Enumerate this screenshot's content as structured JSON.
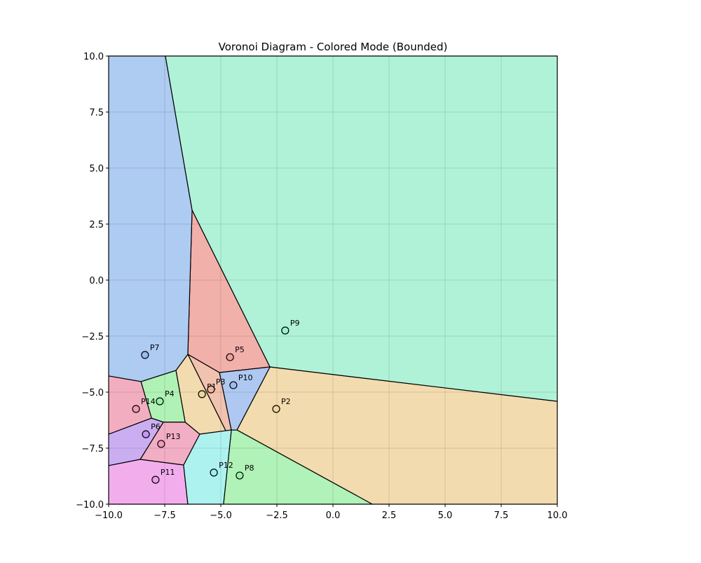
{
  "chart_data": {
    "type": "voronoi",
    "title": "Voronoi Diagram - Colored Mode (Bounded)",
    "xlim": [
      -10,
      10
    ],
    "ylim": [
      -10,
      10
    ],
    "xticks": [
      {
        "value": -10,
        "label": "−10.0"
      },
      {
        "value": -7.5,
        "label": "−7.5"
      },
      {
        "value": -5,
        "label": "−5.0"
      },
      {
        "value": -2.5,
        "label": "−2.5"
      },
      {
        "value": 0,
        "label": "0.0"
      },
      {
        "value": 2.5,
        "label": "2.5"
      },
      {
        "value": 5,
        "label": "5.0"
      },
      {
        "value": 7.5,
        "label": "7.5"
      },
      {
        "value": 10,
        "label": "10.0"
      }
    ],
    "yticks": [
      {
        "value": -10,
        "label": "−10.0"
      },
      {
        "value": -7.5,
        "label": "−7.5"
      },
      {
        "value": -5,
        "label": "−5.0"
      },
      {
        "value": -2.5,
        "label": "−2.5"
      },
      {
        "value": 0,
        "label": "0.0"
      },
      {
        "value": 2.5,
        "label": "2.5"
      },
      {
        "value": 5,
        "label": "5.0"
      },
      {
        "value": 7.5,
        "label": "7.5"
      },
      {
        "value": 10,
        "label": "10.0"
      }
    ],
    "grid": true,
    "points": {
      "labels": [
        "P1",
        "P2",
        "P3",
        "P4",
        "P5",
        "P6",
        "P7",
        "P8",
        "P9",
        "P10",
        "P11",
        "P12",
        "P13",
        "P14"
      ],
      "x": [
        -5.84,
        -2.53,
        -5.44,
        -7.72,
        -4.59,
        -8.34,
        -8.38,
        -4.16,
        -2.13,
        -4.44,
        -7.91,
        -5.31,
        -7.66,
        -8.78
      ],
      "y": [
        -5.09,
        -5.75,
        -4.88,
        -5.41,
        -3.44,
        -6.88,
        -3.34,
        -8.72,
        -2.25,
        -4.69,
        -8.91,
        -8.59,
        -7.31,
        -5.75
      ],
      "colors": [
        "#f2d49a",
        "#f2d49a",
        "#f2b49a",
        "#9af2a6",
        "#f2a09a",
        "#c09af2",
        "#9abcf2",
        "#9af2a6",
        "#9af2d0",
        "#9abcf2",
        "#f29ae8",
        "#9af2ee",
        "#f29ab8",
        "#f29ab4"
      ]
    },
    "cells": [
      {
        "color": "#f2dbae",
        "vertices": [
          [
            -7.0,
            -4.03
          ],
          [
            -6.47,
            -3.31
          ],
          [
            -4.78,
            -6.72
          ],
          [
            -5.94,
            -6.875
          ],
          [
            -6.59,
            -6.34
          ]
        ]
      },
      {
        "color": "#f2dbae",
        "vertices": [
          [
            -2.81,
            -3.875
          ],
          [
            10,
            -5.41
          ],
          [
            10,
            -10
          ],
          [
            1.75,
            -10
          ],
          [
            -4.28,
            -6.69
          ]
        ]
      },
      {
        "color": "#f2c2b0",
        "vertices": [
          [
            -6.47,
            -3.31
          ],
          [
            -5.06,
            -4.125
          ],
          [
            -4.53,
            -6.69
          ],
          [
            -4.78,
            -6.72
          ]
        ]
      },
      {
        "color": "#b0f2b6",
        "vertices": [
          [
            -8.56,
            -4.53
          ],
          [
            -7.0,
            -4.03
          ],
          [
            -6.59,
            -6.34
          ],
          [
            -7.56,
            -6.34
          ],
          [
            -8.09,
            -6.16
          ]
        ]
      },
      {
        "color": "#f2b0ab",
        "vertices": [
          [
            -6.28,
            3.125
          ],
          [
            -2.81,
            -3.875
          ],
          [
            -5.06,
            -4.125
          ],
          [
            -6.47,
            -3.31
          ]
        ]
      },
      {
        "color": "#cbaef2",
        "vertices": [
          [
            -10,
            -6.875
          ],
          [
            -8.09,
            -6.16
          ],
          [
            -7.56,
            -6.34
          ],
          [
            -8.59,
            -8.0
          ],
          [
            -10,
            -8.28
          ]
        ]
      },
      {
        "color": "#aecbf2",
        "vertices": [
          [
            -10,
            10
          ],
          [
            -7.47,
            10
          ],
          [
            -6.28,
            3.125
          ],
          [
            -6.47,
            -3.31
          ],
          [
            -7.0,
            -4.03
          ],
          [
            -8.56,
            -4.53
          ],
          [
            -10,
            -4.28
          ]
        ]
      },
      {
        "color": "#b0f2b8",
        "vertices": [
          [
            -4.53,
            -6.69
          ],
          [
            -4.28,
            -6.69
          ],
          [
            1.75,
            -10
          ],
          [
            -4.88,
            -10
          ]
        ]
      },
      {
        "color": "#b0f2d8",
        "vertices": [
          [
            -7.47,
            10
          ],
          [
            10,
            10
          ],
          [
            10,
            -5.41
          ],
          [
            -2.81,
            -3.875
          ],
          [
            -6.28,
            3.125
          ]
        ]
      },
      {
        "color": "#aec8f2",
        "vertices": [
          [
            -5.06,
            -4.125
          ],
          [
            -2.81,
            -3.875
          ],
          [
            -4.28,
            -6.69
          ],
          [
            -4.53,
            -6.69
          ]
        ]
      },
      {
        "color": "#f2aeec",
        "vertices": [
          [
            -10,
            -8.28
          ],
          [
            -8.59,
            -8.0
          ],
          [
            -6.66,
            -8.25
          ],
          [
            -6.47,
            -10
          ],
          [
            -10,
            -10
          ]
        ]
      },
      {
        "color": "#aef2f0",
        "vertices": [
          [
            -5.94,
            -6.875
          ],
          [
            -4.78,
            -6.72
          ],
          [
            -4.53,
            -6.69
          ],
          [
            -4.88,
            -10
          ],
          [
            -6.47,
            -10
          ],
          [
            -6.66,
            -8.25
          ]
        ]
      },
      {
        "color": "#f2aec4",
        "vertices": [
          [
            -7.56,
            -6.34
          ],
          [
            -6.59,
            -6.34
          ],
          [
            -5.94,
            -6.875
          ],
          [
            -6.66,
            -8.25
          ],
          [
            -8.59,
            -8.0
          ]
        ]
      },
      {
        "color": "#f2aec0",
        "vertices": [
          [
            -10,
            -4.28
          ],
          [
            -8.56,
            -4.53
          ],
          [
            -8.09,
            -6.16
          ],
          [
            -10,
            -6.875
          ]
        ]
      }
    ]
  }
}
